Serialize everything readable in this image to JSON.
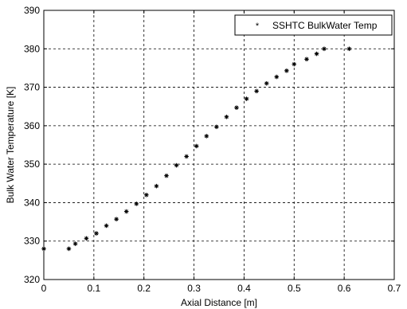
{
  "chart_data": {
    "type": "scatter",
    "xlabel": "Axial Distance [m]",
    "ylabel": "Bulk Water Temperature [K]",
    "xlim": [
      0,
      0.7
    ],
    "ylim": [
      320,
      390
    ],
    "xticks": [
      "0",
      "0.1",
      "0.2",
      "0.3",
      "0.4",
      "0.5",
      "0.6",
      "0.7"
    ],
    "yticks": [
      "320",
      "330",
      "340",
      "350",
      "360",
      "370",
      "380",
      "390"
    ],
    "grid": true,
    "legend_position": "top-right",
    "marker": "*",
    "series": [
      {
        "name": "SSHTC BulkWater Temp",
        "x": [
          0.0,
          0.05,
          0.063,
          0.085,
          0.105,
          0.125,
          0.145,
          0.165,
          0.185,
          0.205,
          0.225,
          0.245,
          0.265,
          0.285,
          0.305,
          0.325,
          0.345,
          0.365,
          0.385,
          0.405,
          0.425,
          0.445,
          0.465,
          0.485,
          0.5,
          0.525,
          0.545,
          0.56,
          0.61
        ],
        "y": [
          328.0,
          328.0,
          329.3,
          330.7,
          332.0,
          334.0,
          335.7,
          337.7,
          339.7,
          342.0,
          344.3,
          347.0,
          349.7,
          352.0,
          354.7,
          357.3,
          359.7,
          362.3,
          364.7,
          367.0,
          369.0,
          371.0,
          372.7,
          374.3,
          376.0,
          377.3,
          378.7,
          380.0,
          380.0
        ]
      }
    ]
  }
}
